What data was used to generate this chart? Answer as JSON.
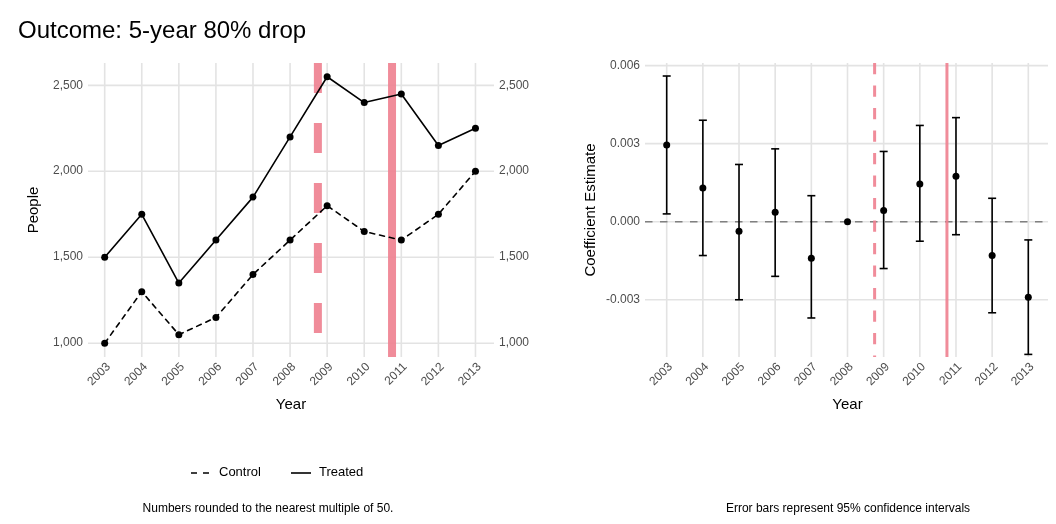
{
  "chart_data": [
    {
      "type": "line",
      "title": "Outcome: 5-year 80% drop",
      "xlabel": "Year",
      "ylabel": "People",
      "x": [
        2003,
        2004,
        2005,
        2006,
        2007,
        2008,
        2009,
        2010,
        2011,
        2012,
        2013
      ],
      "series": [
        {
          "name": "Control",
          "color": "#000000",
          "line_style": "dashed",
          "values": [
            1000,
            1300,
            1050,
            1150,
            1400,
            1600,
            1800,
            1650,
            1600,
            1750,
            2000
          ]
        },
        {
          "name": "Treated",
          "color": "#000000",
          "line_style": "solid",
          "values": [
            1500,
            1750,
            1350,
            1600,
            1850,
            2200,
            2550,
            2400,
            2450,
            2150,
            2250
          ]
        }
      ],
      "xlim": [
        2002.55,
        2013.5
      ],
      "xticks": [
        2003,
        2004,
        2005,
        2006,
        2007,
        2008,
        2009,
        2010,
        2011,
        2012,
        2013
      ],
      "ylim": [
        920,
        2630
      ],
      "yticks": [
        {
          "value": 1000,
          "label": "1,000"
        },
        {
          "value": 1500,
          "label": "1,500"
        },
        {
          "value": 2000,
          "label": "2,000"
        },
        {
          "value": 2500,
          "label": "2,500"
        }
      ],
      "y2lim": [
        920,
        2630
      ],
      "y2ticks": [
        {
          "value": 1000,
          "label": "1,000"
        },
        {
          "value": 1500,
          "label": "1,500"
        },
        {
          "value": 2000,
          "label": "2,000"
        },
        {
          "value": 2500,
          "label": "2,500"
        }
      ],
      "ref_lines": [
        {
          "axis": "x",
          "value": 2008.75,
          "color": "#ee7f8f",
          "line_style": "dashed"
        },
        {
          "axis": "x",
          "value": 2010.75,
          "color": "#ee7f8f",
          "line_style": "solid"
        }
      ],
      "grid": true,
      "legend": "bottom",
      "marker": "circle",
      "annotations": [
        "Numbers rounded to the nearest multiple of 50."
      ]
    },
    {
      "type": "scatter",
      "xlabel": "Year",
      "ylabel": "Coefficient Estimate",
      "x": [
        2003,
        2004,
        2005,
        2006,
        2007,
        2008,
        2009,
        2010,
        2011,
        2012,
        2013
      ],
      "series": [
        {
          "color": "#000000",
          "values": [
            0.00295,
            0.0013,
            -0.00037,
            0.00036,
            -0.0014,
            0,
            0.00043,
            0.00145,
            0.00175,
            -0.0013,
            -0.0029
          ],
          "errors": [
            [
              0.0003,
              0.0056
            ],
            [
              -0.0013,
              0.0039
            ],
            [
              -0.003,
              0.0022
            ],
            [
              -0.0021,
              0.0028
            ],
            [
              -0.0037,
              0.001
            ],
            null,
            [
              -0.0018,
              0.0027
            ],
            [
              -0.00075,
              0.0037
            ],
            [
              -0.0005,
              0.004
            ],
            [
              -0.0035,
              0.0009
            ],
            [
              -0.0051,
              -0.0007
            ]
          ]
        }
      ],
      "xlim": [
        2002.4,
        2013.6
      ],
      "xticks": [
        2003,
        2004,
        2005,
        2006,
        2007,
        2008,
        2009,
        2010,
        2011,
        2012,
        2013
      ],
      "ylim": [
        -0.0052,
        0.0061
      ],
      "yticks": [
        {
          "value": -0.003,
          "label": "-0.003"
        },
        {
          "value": 0,
          "label": "0.000"
        },
        {
          "value": 0.003,
          "label": "0.003"
        },
        {
          "value": 0.006,
          "label": "0.006"
        }
      ],
      "ref_lines": [
        {
          "axis": "y",
          "value": 0,
          "color": "#808080",
          "line_style": "dashed"
        },
        {
          "axis": "x",
          "value": 2008.75,
          "color": "#ee7f8f",
          "line_style": "dashed"
        },
        {
          "axis": "x",
          "value": 2010.75,
          "color": "#ee7f8f",
          "line_style": "solid"
        }
      ],
      "grid": true,
      "marker": "circle",
      "annotations": [
        "Error bars represent 95% confidence intervals"
      ]
    }
  ]
}
